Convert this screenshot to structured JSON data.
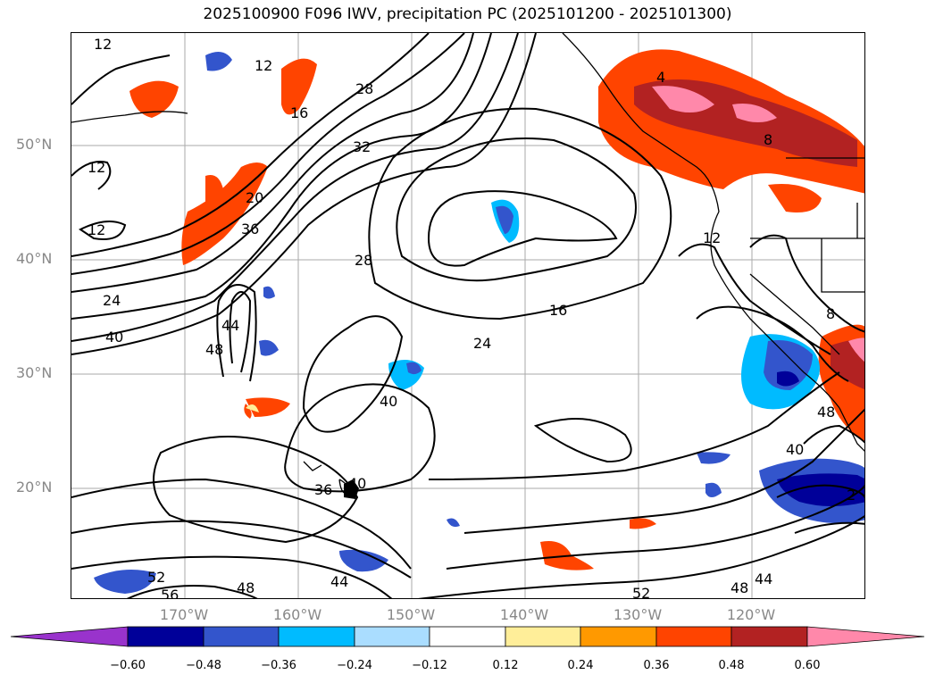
{
  "title": "2025100900 F096 IWV, precipitation PC (2025101200 - 2025101300)",
  "lat_labels": [
    "50°N",
    "40°N",
    "30°N",
    "20°N"
  ],
  "lon_labels": [
    "170°W",
    "160°W",
    "150°W",
    "140°W",
    "130°W",
    "120°W"
  ],
  "contour_labels": [
    "12",
    "12",
    "12",
    "12",
    "16",
    "16",
    "20",
    "24",
    "24",
    "28",
    "28",
    "32",
    "36",
    "36",
    "40",
    "40",
    "40",
    "44",
    "44",
    "44",
    "48",
    "48",
    "48",
    "52",
    "52",
    "56",
    "4",
    "8",
    "8",
    "12",
    "48",
    "40",
    "2"
  ],
  "colorbar": {
    "ticks": [
      "−0.60",
      "−0.48",
      "−0.36",
      "−0.24",
      "−0.12",
      "0.12",
      "0.24",
      "0.36",
      "0.48",
      "0.60"
    ],
    "colors": [
      "#9933cc",
      "#000099",
      "#3355cc",
      "#00bbff",
      "#aaddff",
      "#ffffff",
      "#ffee99",
      "#ff9900",
      "#ff4400",
      "#b22222",
      "#ff88aa"
    ]
  },
  "precip_colors": {
    "deep_blue": "#000099",
    "blue": "#3355cc",
    "cyan": "#00bbff",
    "light_blue": "#aaddff",
    "yellow": "#ffee99",
    "orange": "#ff9900",
    "red_orange": "#ff4400",
    "dark_red": "#b22222",
    "pink": "#ff88aa"
  }
}
